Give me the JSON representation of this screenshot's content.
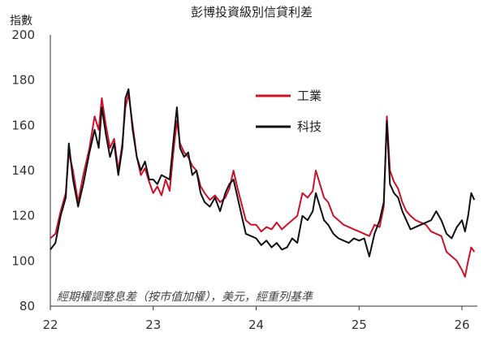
{
  "chart_data": {
    "type": "line",
    "title": "彭博投資級別信貸利差",
    "ylabel": "指數",
    "note": "經期權調整息差（按市值加權），美元，經重列基準",
    "ylim": [
      80,
      200
    ],
    "yticks": [
      80,
      100,
      120,
      140,
      160,
      180,
      200
    ],
    "xlim": [
      22.0,
      26.15
    ],
    "xticks": [
      22,
      23,
      24,
      25,
      26
    ],
    "xtick_labels": [
      "22",
      "23",
      "24",
      "25",
      "26"
    ],
    "legend_placement": "upper-center",
    "grid": false,
    "series": [
      {
        "name": "工業",
        "color": "#d0102a",
        "points": [
          [
            22.0,
            110
          ],
          [
            22.05,
            112
          ],
          [
            22.1,
            122
          ],
          [
            22.15,
            130
          ],
          [
            22.18,
            148
          ],
          [
            22.22,
            140
          ],
          [
            22.27,
            126
          ],
          [
            22.32,
            138
          ],
          [
            22.38,
            150
          ],
          [
            22.43,
            164
          ],
          [
            22.47,
            158
          ],
          [
            22.5,
            172
          ],
          [
            22.54,
            160
          ],
          [
            22.58,
            150
          ],
          [
            22.62,
            154
          ],
          [
            22.66,
            140
          ],
          [
            22.7,
            152
          ],
          [
            22.73,
            168
          ],
          [
            22.76,
            174
          ],
          [
            22.8,
            160
          ],
          [
            22.84,
            146
          ],
          [
            22.88,
            138
          ],
          [
            22.92,
            141
          ],
          [
            22.96,
            135
          ],
          [
            23.0,
            130
          ],
          [
            23.04,
            133
          ],
          [
            23.08,
            129
          ],
          [
            23.12,
            136
          ],
          [
            23.16,
            131
          ],
          [
            23.2,
            150
          ],
          [
            23.23,
            162
          ],
          [
            23.26,
            152
          ],
          [
            23.3,
            148
          ],
          [
            23.34,
            146
          ],
          [
            23.38,
            142
          ],
          [
            23.42,
            140
          ],
          [
            23.46,
            133
          ],
          [
            23.5,
            130
          ],
          [
            23.55,
            127
          ],
          [
            23.6,
            129
          ],
          [
            23.65,
            126
          ],
          [
            23.7,
            128
          ],
          [
            23.74,
            132
          ],
          [
            23.78,
            140
          ],
          [
            23.82,
            132
          ],
          [
            23.86,
            125
          ],
          [
            23.9,
            118
          ],
          [
            23.95,
            116
          ],
          [
            24.0,
            116
          ],
          [
            24.05,
            113
          ],
          [
            24.1,
            115
          ],
          [
            24.15,
            114
          ],
          [
            24.2,
            117
          ],
          [
            24.25,
            114
          ],
          [
            24.3,
            116
          ],
          [
            24.35,
            118
          ],
          [
            24.4,
            120
          ],
          [
            24.45,
            130
          ],
          [
            24.5,
            128
          ],
          [
            24.55,
            131
          ],
          [
            24.58,
            140
          ],
          [
            24.62,
            134
          ],
          [
            24.66,
            128
          ],
          [
            24.7,
            126
          ],
          [
            24.75,
            120
          ],
          [
            24.8,
            118
          ],
          [
            24.85,
            116
          ],
          [
            24.9,
            115
          ],
          [
            24.95,
            114
          ],
          [
            25.0,
            113
          ],
          [
            25.05,
            112
          ],
          [
            25.1,
            111
          ],
          [
            25.15,
            116
          ],
          [
            25.2,
            115
          ],
          [
            25.24,
            124
          ],
          [
            25.27,
            164
          ],
          [
            25.3,
            140
          ],
          [
            25.34,
            135
          ],
          [
            25.38,
            132
          ],
          [
            25.42,
            126
          ],
          [
            25.46,
            122
          ],
          [
            25.5,
            120
          ],
          [
            25.55,
            118
          ],
          [
            25.6,
            117
          ],
          [
            25.65,
            116
          ],
          [
            25.7,
            113
          ],
          [
            25.75,
            112
          ],
          [
            25.8,
            111
          ],
          [
            25.85,
            104
          ],
          [
            25.9,
            102
          ],
          [
            25.95,
            100
          ],
          [
            26.0,
            96
          ],
          [
            26.03,
            93
          ],
          [
            26.06,
            100
          ],
          [
            26.09,
            106
          ],
          [
            26.12,
            104
          ]
        ]
      },
      {
        "name": "科技",
        "color": "#111111",
        "points": [
          [
            22.0,
            105
          ],
          [
            22.05,
            108
          ],
          [
            22.1,
            120
          ],
          [
            22.15,
            128
          ],
          [
            22.18,
            152
          ],
          [
            22.22,
            136
          ],
          [
            22.27,
            124
          ],
          [
            22.32,
            134
          ],
          [
            22.38,
            148
          ],
          [
            22.43,
            158
          ],
          [
            22.47,
            150
          ],
          [
            22.5,
            168
          ],
          [
            22.54,
            156
          ],
          [
            22.58,
            146
          ],
          [
            22.62,
            152
          ],
          [
            22.66,
            138
          ],
          [
            22.7,
            150
          ],
          [
            22.73,
            172
          ],
          [
            22.76,
            176
          ],
          [
            22.8,
            158
          ],
          [
            22.84,
            146
          ],
          [
            22.88,
            140
          ],
          [
            22.92,
            144
          ],
          [
            22.96,
            136
          ],
          [
            23.0,
            136
          ],
          [
            23.04,
            134
          ],
          [
            23.08,
            138
          ],
          [
            23.12,
            137
          ],
          [
            23.16,
            136
          ],
          [
            23.2,
            155
          ],
          [
            23.23,
            168
          ],
          [
            23.26,
            150
          ],
          [
            23.3,
            146
          ],
          [
            23.34,
            148
          ],
          [
            23.38,
            138
          ],
          [
            23.42,
            140
          ],
          [
            23.46,
            130
          ],
          [
            23.5,
            126
          ],
          [
            23.55,
            124
          ],
          [
            23.6,
            128
          ],
          [
            23.65,
            122
          ],
          [
            23.7,
            130
          ],
          [
            23.74,
            134
          ],
          [
            23.78,
            136
          ],
          [
            23.82,
            128
          ],
          [
            23.86,
            120
          ],
          [
            23.9,
            112
          ],
          [
            23.95,
            111
          ],
          [
            24.0,
            110
          ],
          [
            24.05,
            107
          ],
          [
            24.1,
            109
          ],
          [
            24.15,
            106
          ],
          [
            24.2,
            108
          ],
          [
            24.25,
            105
          ],
          [
            24.3,
            106
          ],
          [
            24.35,
            110
          ],
          [
            24.4,
            108
          ],
          [
            24.45,
            120
          ],
          [
            24.5,
            118
          ],
          [
            24.55,
            122
          ],
          [
            24.58,
            130
          ],
          [
            24.62,
            124
          ],
          [
            24.66,
            118
          ],
          [
            24.7,
            116
          ],
          [
            24.75,
            112
          ],
          [
            24.8,
            110
          ],
          [
            24.85,
            109
          ],
          [
            24.9,
            108
          ],
          [
            24.95,
            110
          ],
          [
            25.0,
            109
          ],
          [
            25.05,
            110
          ],
          [
            25.1,
            102
          ],
          [
            25.15,
            112
          ],
          [
            25.2,
            118
          ],
          [
            25.24,
            126
          ],
          [
            25.27,
            162
          ],
          [
            25.3,
            134
          ],
          [
            25.34,
            130
          ],
          [
            25.38,
            128
          ],
          [
            25.42,
            122
          ],
          [
            25.46,
            118
          ],
          [
            25.5,
            114
          ],
          [
            25.55,
            115
          ],
          [
            25.6,
            116
          ],
          [
            25.65,
            117
          ],
          [
            25.7,
            118
          ],
          [
            25.75,
            122
          ],
          [
            25.8,
            118
          ],
          [
            25.85,
            112
          ],
          [
            25.9,
            110
          ],
          [
            25.95,
            115
          ],
          [
            26.0,
            118
          ],
          [
            26.03,
            113
          ],
          [
            26.06,
            120
          ],
          [
            26.09,
            130
          ],
          [
            26.12,
            127
          ]
        ]
      }
    ]
  }
}
